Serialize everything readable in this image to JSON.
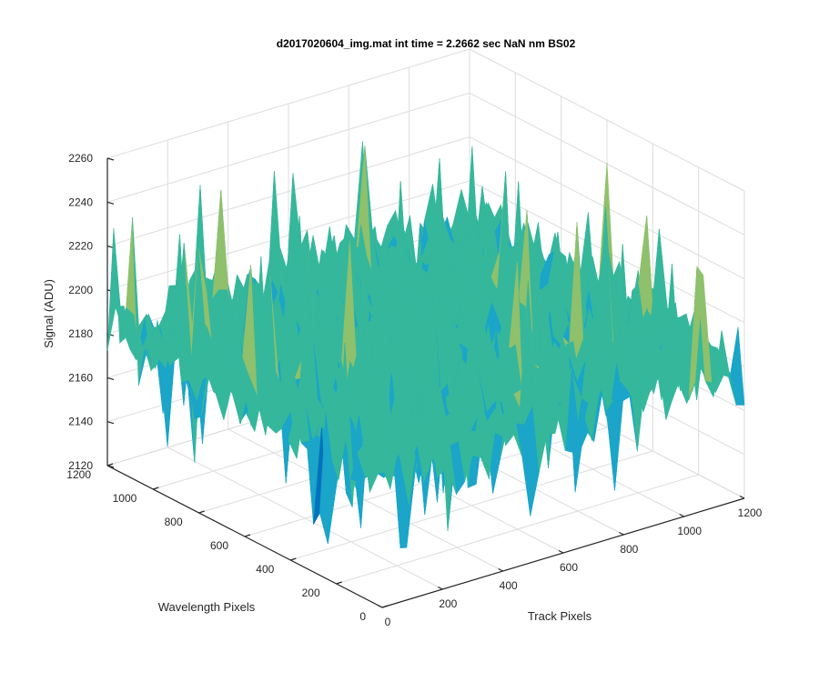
{
  "chart_data": {
    "type": "surface",
    "title": "d2017020604_img.mat int time = 2.2662 sec  NaN nm BS02",
    "xlabel": "Track Pixels",
    "ylabel": "Wavelength Pixels",
    "zlabel": "Signal (ADU)",
    "xlim": [
      0,
      1200
    ],
    "ylim": [
      0,
      1200
    ],
    "zlim": [
      2120,
      2260
    ],
    "xticks": [
      0,
      200,
      400,
      600,
      800,
      1000,
      1200
    ],
    "yticks": [
      0,
      200,
      400,
      600,
      800,
      1000,
      1200
    ],
    "zticks": [
      2120,
      2140,
      2160,
      2180,
      2200,
      2220,
      2240,
      2260
    ],
    "grid": true,
    "colormap": [
      "#0072bd",
      "#1aa5c9",
      "#35b79c",
      "#8fc06b",
      "#e3b54a"
    ],
    "surface": {
      "mean": 2182,
      "noise_std": 11,
      "typical_min": 2130,
      "typical_max": 2245,
      "spikes_down_to": 2130,
      "spikes_up_to": 2245
    }
  }
}
